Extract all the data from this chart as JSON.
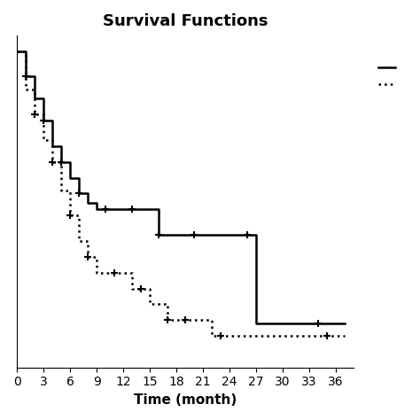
{
  "title": "Survival Functions",
  "xlabel": "Time (month)",
  "ylabel": "",
  "xlim": [
    0,
    38
  ],
  "ylim": [
    0,
    1.05
  ],
  "xticks": [
    0,
    3,
    6,
    9,
    12,
    15,
    18,
    21,
    24,
    27,
    30,
    33,
    36
  ],
  "solid_line": {
    "times": [
      0,
      1,
      2,
      3,
      4,
      5,
      6,
      7,
      8,
      9,
      10,
      11,
      12,
      13,
      14,
      15,
      16,
      17,
      18,
      19,
      20,
      21,
      22,
      23,
      24,
      25,
      26,
      27,
      28,
      29,
      30,
      31,
      32,
      33,
      34,
      35,
      36,
      37
    ],
    "surv": [
      1.0,
      0.92,
      0.85,
      0.78,
      0.7,
      0.65,
      0.6,
      0.55,
      0.52,
      0.5,
      0.5,
      0.5,
      0.5,
      0.5,
      0.5,
      0.5,
      0.42,
      0.42,
      0.42,
      0.42,
      0.42,
      0.42,
      0.42,
      0.42,
      0.42,
      0.42,
      0.42,
      0.14,
      0.14,
      0.14,
      0.14,
      0.14,
      0.14,
      0.14,
      0.14,
      0.14,
      0.14,
      0.14
    ],
    "censors": [
      1,
      3,
      5,
      7,
      10,
      13,
      16,
      20,
      26,
      34
    ],
    "censor_surv": [
      0.92,
      0.78,
      0.65,
      0.55,
      0.5,
      0.5,
      0.42,
      0.42,
      0.42,
      0.14
    ]
  },
  "dotted_line": {
    "times": [
      0,
      1,
      2,
      3,
      4,
      5,
      6,
      7,
      8,
      9,
      10,
      11,
      12,
      13,
      14,
      15,
      16,
      17,
      18,
      19,
      20,
      21,
      22,
      23,
      24,
      25,
      26,
      27,
      28,
      29,
      30,
      31,
      32,
      33,
      34,
      35,
      36,
      37
    ],
    "surv": [
      1.0,
      0.88,
      0.8,
      0.72,
      0.65,
      0.56,
      0.48,
      0.4,
      0.35,
      0.3,
      0.3,
      0.3,
      0.3,
      0.25,
      0.25,
      0.2,
      0.2,
      0.15,
      0.15,
      0.15,
      0.15,
      0.15,
      0.1,
      0.1,
      0.1,
      0.1,
      0.1,
      0.1,
      0.1,
      0.1,
      0.1,
      0.1,
      0.1,
      0.1,
      0.1,
      0.1,
      0.1,
      0.1
    ],
    "censors": [
      2,
      4,
      6,
      8,
      11,
      14,
      17,
      19,
      23,
      35
    ],
    "censor_surv": [
      0.8,
      0.65,
      0.48,
      0.35,
      0.3,
      0.25,
      0.15,
      0.15,
      0.1,
      0.1
    ]
  },
  "line_color": "#000000",
  "background_color": "#ffffff",
  "title_fontsize": 13,
  "axis_fontsize": 11,
  "tick_fontsize": 10
}
